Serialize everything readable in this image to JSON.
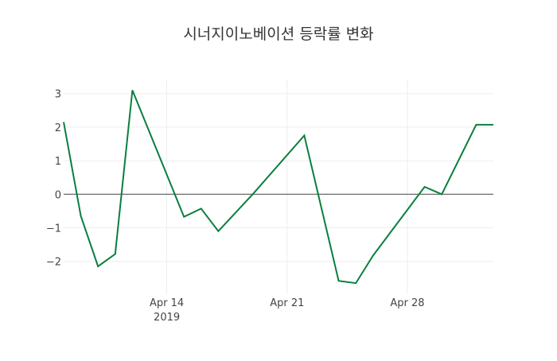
{
  "chart_data": {
    "type": "line",
    "title": "시너지이노베이션 등락률 변화",
    "xlabel": "",
    "ylabel": "",
    "x_ticks": [
      {
        "date": "2019-04-14",
        "label": "Apr 14",
        "sub": "2019"
      },
      {
        "date": "2019-04-21",
        "label": "Apr 21",
        "sub": ""
      },
      {
        "date": "2019-04-28",
        "label": "Apr 28",
        "sub": ""
      }
    ],
    "y_ticks": [
      -2,
      -1,
      0,
      1,
      2,
      3
    ],
    "y_tick_labels": [
      "−2",
      "−1",
      "0",
      "1",
      "2",
      "3"
    ],
    "xlim": [
      "2019-04-08",
      "2019-05-03"
    ],
    "ylim": [
      -2.9,
      3.4
    ],
    "grid": true,
    "series": [
      {
        "name": "등락률",
        "color": "#0a7f3f",
        "x": [
          "2019-04-08",
          "2019-04-09",
          "2019-04-10",
          "2019-04-11",
          "2019-04-12",
          "2019-04-15",
          "2019-04-16",
          "2019-04-17",
          "2019-04-19",
          "2019-04-22",
          "2019-04-24",
          "2019-04-25",
          "2019-04-26",
          "2019-04-29",
          "2019-04-30",
          "2019-05-02",
          "2019-05-03"
        ],
        "values": [
          2.15,
          -0.65,
          -2.15,
          -1.78,
          3.1,
          -0.67,
          -0.43,
          -1.1,
          0.0,
          1.75,
          -2.58,
          -2.65,
          -1.83,
          0.22,
          0.0,
          2.07,
          2.07
        ]
      }
    ]
  }
}
